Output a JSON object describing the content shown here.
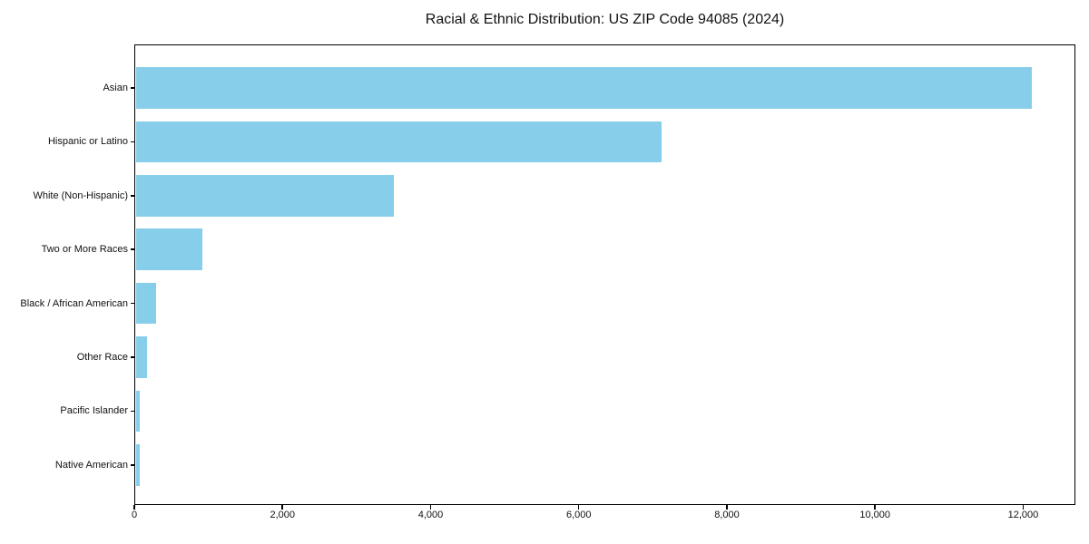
{
  "title": "Racial & Ethnic Distribution: US ZIP Code 94085 (2024)",
  "chart_data": {
    "type": "bar",
    "orientation": "horizontal",
    "title": "Racial & Ethnic Distribution: US ZIP Code 94085 (2024)",
    "xlabel": "",
    "ylabel": "",
    "categories": [
      "Asian",
      "Hispanic or Latino",
      "White (Non-Hispanic)",
      "Two or More Races",
      "Black / African American",
      "Other Race",
      "Pacific Islander",
      "Native American"
    ],
    "values": [
      12100,
      7100,
      3490,
      900,
      270,
      155,
      55,
      50
    ],
    "xlim": [
      0,
      12705
    ],
    "x_ticks": [
      0,
      2000,
      4000,
      6000,
      8000,
      10000,
      12000
    ],
    "x_tick_labels": [
      "0",
      "2,000",
      "4,000",
      "6,000",
      "8,000",
      "10,000",
      "12,000"
    ],
    "bar_color": "#87CEEB",
    "axis_color": "#000000",
    "grid": false,
    "legend": false
  }
}
